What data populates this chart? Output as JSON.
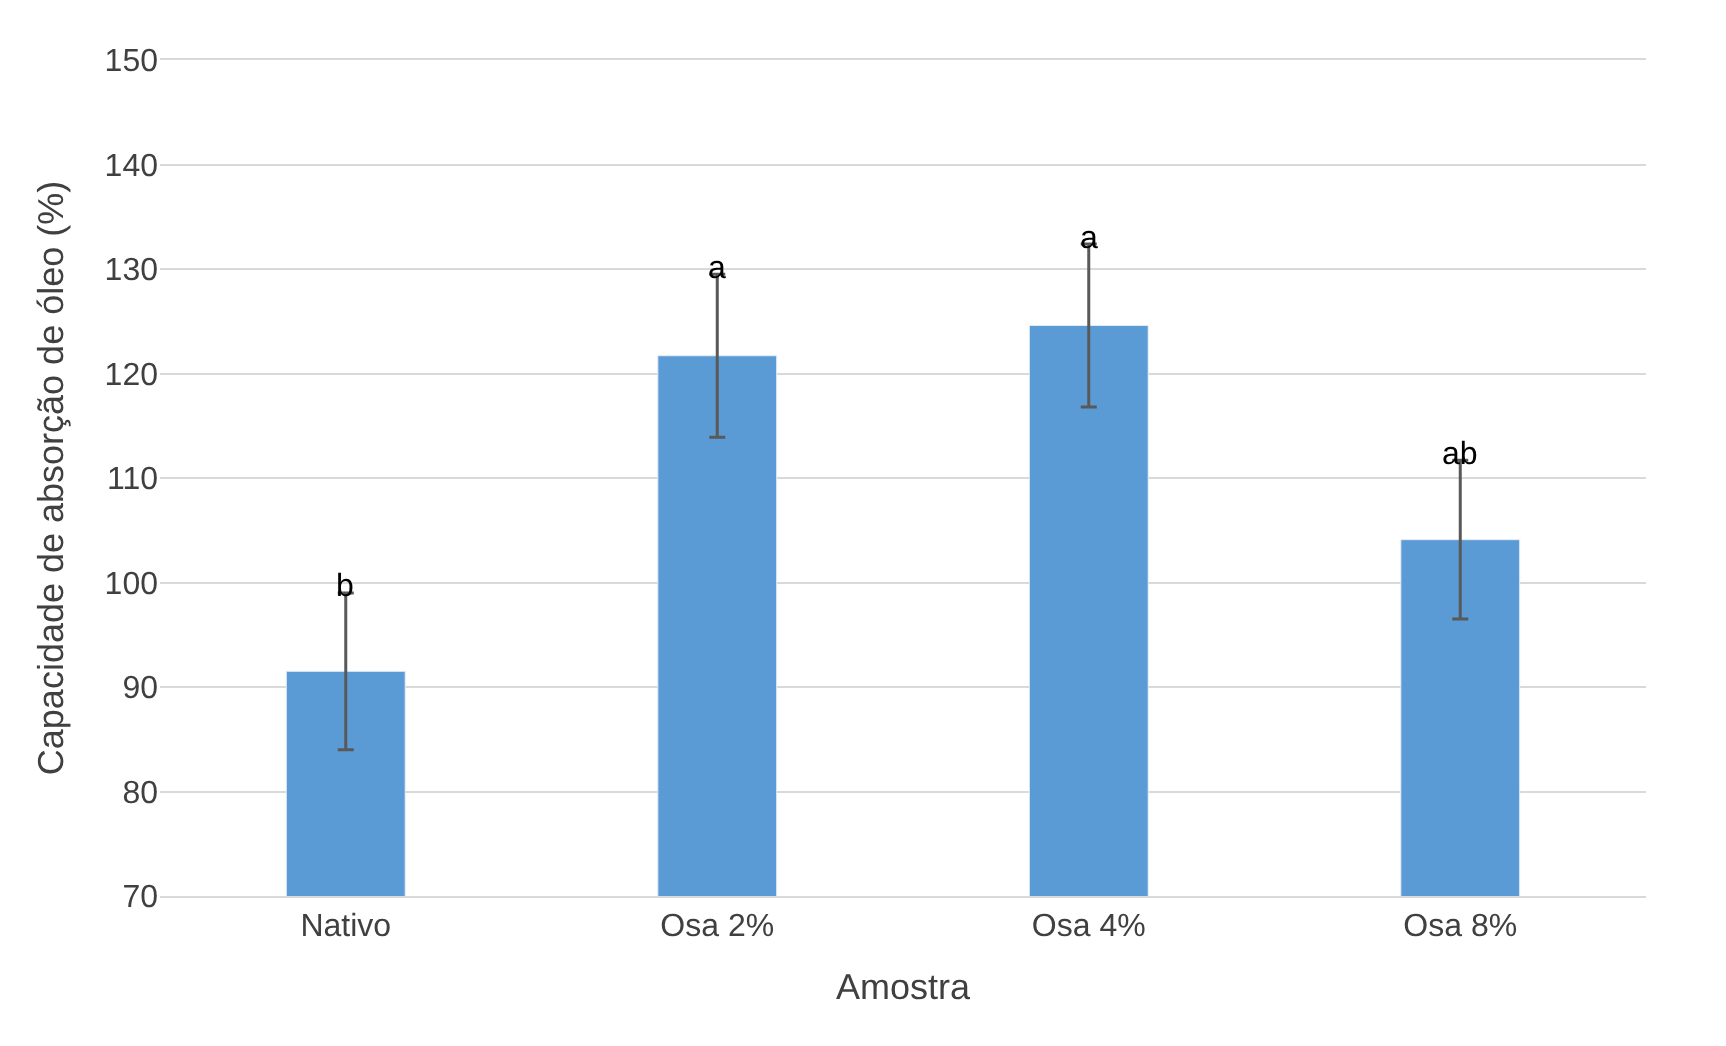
{
  "chart_data": {
    "type": "bar",
    "xlabel": "Amostra",
    "ylabel": "Capacidade de absorção de óleo (%)",
    "categories": [
      "Nativo",
      "Osa 2%",
      "Osa 4%",
      "Osa 8%"
    ],
    "values": [
      91.5,
      121.7,
      124.6,
      104.1
    ],
    "errors": [
      7.5,
      7.8,
      7.8,
      7.6
    ],
    "color": "#5b9bd5",
    "ylim": [
      70,
      150
    ],
    "yticks": [
      70,
      80,
      90,
      100,
      110,
      120,
      130,
      140,
      150
    ],
    "grid": "y",
    "annotations": [
      "b",
      "a",
      "a",
      "ab"
    ]
  }
}
